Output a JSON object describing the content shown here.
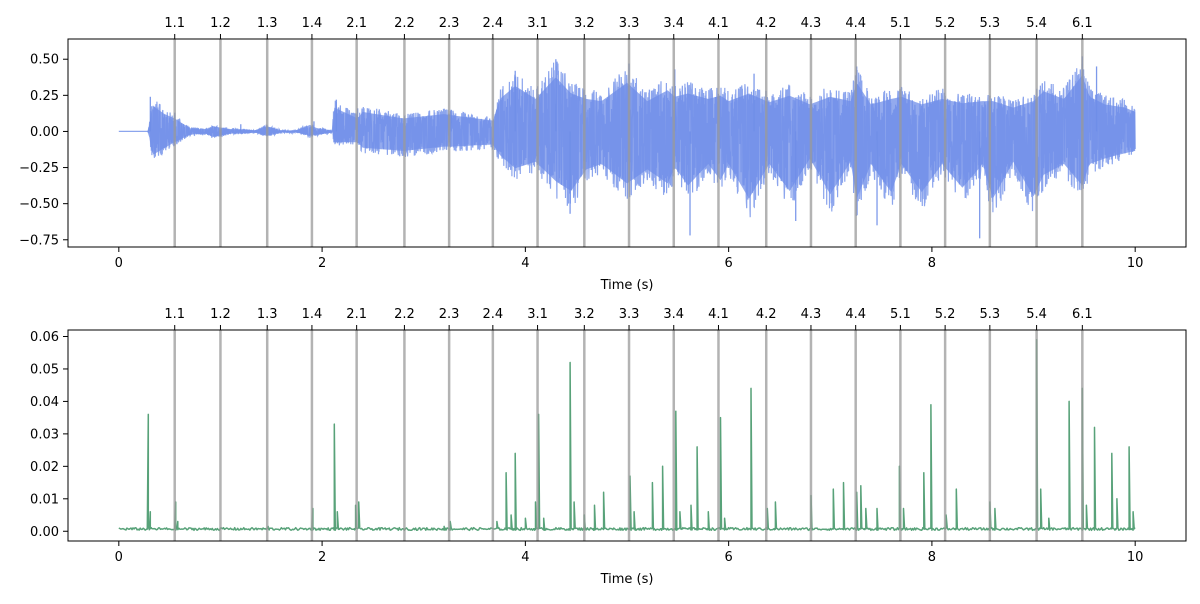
{
  "chart_data": [
    {
      "type": "line",
      "xlabel": "Time (s)",
      "ylabel": "",
      "title": "",
      "xlim": [
        -0.5,
        10.5
      ],
      "ylim": [
        -0.8,
        0.64
      ],
      "x_ticks": [
        0,
        2,
        4,
        6,
        8,
        10
      ],
      "x_tick_labels": [
        "0",
        "2",
        "4",
        "6",
        "8",
        "10"
      ],
      "y_ticks": [
        -0.75,
        -0.5,
        -0.25,
        0.0,
        0.25,
        0.5
      ],
      "y_tick_labels": [
        "−0.75",
        "−0.50",
        "−0.25",
        "0.00",
        "0.25",
        "0.50"
      ],
      "series_color": "#6f8ee8",
      "envelope": {
        "x": [
          0.0,
          0.29,
          0.33,
          0.45,
          0.55,
          0.7,
          0.86,
          0.92,
          1.1,
          1.2,
          1.35,
          1.45,
          1.6,
          1.75,
          1.88,
          1.95,
          2.1,
          2.12,
          2.35,
          2.4,
          2.8,
          3.2,
          3.27,
          3.68,
          3.75,
          3.9,
          4.1,
          4.3,
          4.45,
          4.6,
          4.75,
          5.0,
          5.2,
          5.4,
          5.47,
          5.6,
          5.8,
          5.92,
          6.0,
          6.2,
          6.4,
          6.6,
          6.8,
          7.0,
          7.2,
          7.26,
          7.4,
          7.6,
          7.7,
          7.9,
          8.1,
          8.3,
          8.5,
          8.6,
          8.8,
          9.0,
          9.1,
          9.3,
          9.48,
          9.55,
          9.7,
          9.9,
          10.0
        ],
        "upper": [
          0.0,
          0.0,
          0.24,
          0.16,
          0.12,
          0.03,
          0.02,
          0.05,
          0.02,
          0.02,
          0.01,
          0.05,
          0.01,
          0.01,
          0.06,
          0.03,
          0.01,
          0.22,
          0.12,
          0.18,
          0.12,
          0.16,
          0.15,
          0.1,
          0.3,
          0.42,
          0.3,
          0.5,
          0.35,
          0.3,
          0.28,
          0.45,
          0.28,
          0.38,
          0.32,
          0.35,
          0.3,
          0.33,
          0.28,
          0.35,
          0.27,
          0.33,
          0.25,
          0.32,
          0.28,
          0.45,
          0.25,
          0.3,
          0.32,
          0.25,
          0.3,
          0.26,
          0.28,
          0.28,
          0.22,
          0.28,
          0.37,
          0.3,
          0.52,
          0.32,
          0.25,
          0.22,
          0.18
        ],
        "lower": [
          0.0,
          0.0,
          -0.22,
          -0.15,
          -0.1,
          -0.03,
          -0.02,
          -0.05,
          -0.02,
          -0.02,
          -0.01,
          -0.04,
          -0.01,
          -0.01,
          -0.04,
          -0.03,
          -0.01,
          -0.1,
          -0.1,
          -0.15,
          -0.18,
          -0.14,
          -0.14,
          -0.12,
          -0.22,
          -0.34,
          -0.28,
          -0.46,
          -0.55,
          -0.35,
          -0.3,
          -0.48,
          -0.35,
          -0.48,
          -0.33,
          -0.5,
          -0.3,
          -0.45,
          -0.3,
          -0.62,
          -0.3,
          -0.55,
          -0.25,
          -0.58,
          -0.28,
          -0.62,
          -0.3,
          -0.56,
          -0.3,
          -0.56,
          -0.3,
          -0.52,
          -0.3,
          -0.62,
          -0.28,
          -0.6,
          -0.4,
          -0.3,
          -0.5,
          -0.3,
          -0.25,
          -0.2,
          -0.18
        ]
      },
      "peaks": [
        {
          "x": 0.31,
          "y": 0.24
        },
        {
          "x": 0.55,
          "y": 0.13
        },
        {
          "x": 1.2,
          "y": 0.05
        },
        {
          "x": 1.92,
          "y": 0.07
        },
        {
          "x": 2.14,
          "y": 0.22
        },
        {
          "x": 2.35,
          "y": 0.16
        },
        {
          "x": 3.27,
          "y": 0.15
        },
        {
          "x": 3.9,
          "y": 0.42
        },
        {
          "x": 4.3,
          "y": 0.5
        },
        {
          "x": 5.02,
          "y": 0.47
        },
        {
          "x": 5.47,
          "y": 0.43
        },
        {
          "x": 6.25,
          "y": 0.4
        },
        {
          "x": 7.26,
          "y": 0.45
        },
        {
          "x": 9.48,
          "y": 0.52
        },
        {
          "x": 9.62,
          "y": 0.45
        },
        {
          "x": 5.62,
          "y": -0.72
        },
        {
          "x": 8.47,
          "y": -0.74
        },
        {
          "x": 4.44,
          "y": -0.57
        },
        {
          "x": 6.66,
          "y": -0.62
        },
        {
          "x": 7.46,
          "y": -0.65
        }
      ]
    },
    {
      "type": "line",
      "xlabel": "Time (s)",
      "ylabel": "",
      "title": "",
      "xlim": [
        -0.5,
        10.5
      ],
      "ylim": [
        -0.003,
        0.062
      ],
      "x_ticks": [
        0,
        2,
        4,
        6,
        8,
        10
      ],
      "x_tick_labels": [
        "0",
        "2",
        "4",
        "6",
        "8",
        "10"
      ],
      "y_ticks": [
        0.0,
        0.01,
        0.02,
        0.03,
        0.04,
        0.05,
        0.06
      ],
      "y_tick_labels": [
        "0.00",
        "0.01",
        "0.02",
        "0.03",
        "0.04",
        "0.05",
        "0.06"
      ],
      "series_color": "#2e8b57",
      "baseline": 0.0003,
      "peaks": [
        {
          "x": 0.29,
          "y": 0.036
        },
        {
          "x": 0.31,
          "y": 0.006
        },
        {
          "x": 0.56,
          "y": 0.009
        },
        {
          "x": 0.58,
          "y": 0.003
        },
        {
          "x": 1.47,
          "y": 0.0015
        },
        {
          "x": 1.91,
          "y": 0.007
        },
        {
          "x": 2.12,
          "y": 0.033
        },
        {
          "x": 2.15,
          "y": 0.006
        },
        {
          "x": 2.33,
          "y": 0.008
        },
        {
          "x": 2.36,
          "y": 0.009
        },
        {
          "x": 3.2,
          "y": 0.0015
        },
        {
          "x": 3.26,
          "y": 0.003
        },
        {
          "x": 3.72,
          "y": 0.003
        },
        {
          "x": 3.81,
          "y": 0.018
        },
        {
          "x": 3.86,
          "y": 0.005
        },
        {
          "x": 3.9,
          "y": 0.024
        },
        {
          "x": 4.0,
          "y": 0.004
        },
        {
          "x": 4.1,
          "y": 0.009
        },
        {
          "x": 4.13,
          "y": 0.036
        },
        {
          "x": 4.18,
          "y": 0.004
        },
        {
          "x": 4.44,
          "y": 0.052
        },
        {
          "x": 4.48,
          "y": 0.009
        },
        {
          "x": 4.58,
          "y": 0.005
        },
        {
          "x": 4.68,
          "y": 0.008
        },
        {
          "x": 4.77,
          "y": 0.012
        },
        {
          "x": 5.03,
          "y": 0.017
        },
        {
          "x": 5.07,
          "y": 0.006
        },
        {
          "x": 5.25,
          "y": 0.015
        },
        {
          "x": 5.35,
          "y": 0.02
        },
        {
          "x": 5.48,
          "y": 0.037
        },
        {
          "x": 5.52,
          "y": 0.006
        },
        {
          "x": 5.63,
          "y": 0.008
        },
        {
          "x": 5.69,
          "y": 0.026
        },
        {
          "x": 5.8,
          "y": 0.006
        },
        {
          "x": 5.92,
          "y": 0.035
        },
        {
          "x": 5.96,
          "y": 0.004
        },
        {
          "x": 6.22,
          "y": 0.044
        },
        {
          "x": 6.38,
          "y": 0.007
        },
        {
          "x": 6.46,
          "y": 0.009
        },
        {
          "x": 6.81,
          "y": 0.011
        },
        {
          "x": 7.03,
          "y": 0.013
        },
        {
          "x": 7.13,
          "y": 0.015
        },
        {
          "x": 7.26,
          "y": 0.012
        },
        {
          "x": 7.3,
          "y": 0.014
        },
        {
          "x": 7.35,
          "y": 0.007
        },
        {
          "x": 7.46,
          "y": 0.007
        },
        {
          "x": 7.68,
          "y": 0.02
        },
        {
          "x": 7.72,
          "y": 0.007
        },
        {
          "x": 7.92,
          "y": 0.018
        },
        {
          "x": 7.99,
          "y": 0.039
        },
        {
          "x": 8.14,
          "y": 0.005
        },
        {
          "x": 8.24,
          "y": 0.013
        },
        {
          "x": 8.57,
          "y": 0.009
        },
        {
          "x": 8.62,
          "y": 0.007
        },
        {
          "x": 9.03,
          "y": 0.059
        },
        {
          "x": 9.07,
          "y": 0.013
        },
        {
          "x": 9.15,
          "y": 0.004
        },
        {
          "x": 9.35,
          "y": 0.04
        },
        {
          "x": 9.48,
          "y": 0.044
        },
        {
          "x": 9.52,
          "y": 0.008
        },
        {
          "x": 9.6,
          "y": 0.032
        },
        {
          "x": 9.77,
          "y": 0.024
        },
        {
          "x": 9.82,
          "y": 0.01
        },
        {
          "x": 9.94,
          "y": 0.026
        },
        {
          "x": 9.98,
          "y": 0.006
        }
      ]
    }
  ],
  "beat_markers": {
    "color": "#999999",
    "times": [
      0.55,
      1.0,
      1.46,
      1.9,
      2.34,
      2.81,
      3.25,
      3.68,
      4.12,
      4.58,
      5.02,
      5.46,
      5.9,
      6.37,
      6.81,
      7.25,
      7.69,
      8.13,
      8.57,
      9.03,
      9.48
    ],
    "labels": [
      "1.1",
      "1.2",
      "1.3",
      "1.4",
      "2.1",
      "2.2",
      "2.3",
      "2.4",
      "3.1",
      "3.2",
      "3.3",
      "3.4",
      "4.1",
      "4.2",
      "4.3",
      "4.4",
      "5.1",
      "5.2",
      "5.3",
      "5.4",
      "6.1"
    ]
  }
}
